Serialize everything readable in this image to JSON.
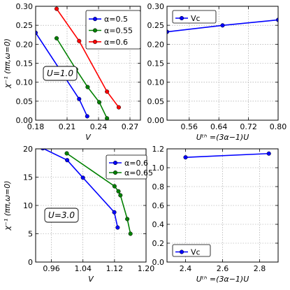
{
  "chart_data": [
    {
      "type": "line",
      "xlabel": "V",
      "ylabel": "χ⁻¹ (ππ,ω=0)",
      "xlim": [
        0.18,
        0.28
      ],
      "ylim": [
        0.0,
        0.3
      ],
      "xticks": [
        "0.18",
        "0.21",
        "0.24",
        "0.27"
      ],
      "yticks": [
        "0.00",
        "0.05",
        "0.10",
        "0.15",
        "0.20",
        "0.25",
        "0.30"
      ],
      "grid": true,
      "legend": "top-right",
      "annotation": "U=1.0",
      "series": [
        {
          "name": "α=0.5",
          "color": "#0000ff",
          "x": [
            0.18,
            0.2215,
            0.2292
          ],
          "y": [
            0.2303,
            0.0558,
            0.0103
          ]
        },
        {
          "name": "α=0.55",
          "color": "#008000",
          "x": [
            0.2,
            0.2185,
            0.2296,
            0.2407,
            0.2481
          ],
          "y": [
            0.2158,
            0.1339,
            0.0873,
            0.0473,
            0.0049
          ]
        },
        {
          "name": "α=0.6",
          "color": "#ff0000",
          "x": [
            0.2,
            0.2215,
            0.2481,
            0.2593
          ],
          "y": [
            0.2933,
            0.2085,
            0.0752,
            0.0339
          ]
        }
      ]
    },
    {
      "type": "line",
      "xlabel": "Uᵗʰ =(3α−1)U",
      "ylabel": "",
      "xlim": [
        0.5,
        0.8
      ],
      "ylim": [
        0.0,
        0.3
      ],
      "xticks": [
        "0.56",
        "0.64",
        "0.72",
        "0.80"
      ],
      "yticks": [
        "0.00",
        "0.05",
        "0.10",
        "0.15",
        "0.20",
        "0.25",
        "0.30"
      ],
      "grid": true,
      "legend": "top-left",
      "series": [
        {
          "name": "Vc",
          "color": "#0000ff",
          "x": [
            0.5,
            0.65,
            0.8
          ],
          "y": [
            0.2327,
            0.2497,
            0.2642
          ]
        }
      ]
    },
    {
      "type": "line",
      "xlabel": "V",
      "ylabel": "χ⁻¹ (ππ,ω=0)",
      "xlim": [
        0.92,
        1.2
      ],
      "ylim": [
        0,
        20
      ],
      "xticks": [
        "0.96",
        "1.04",
        "1.12",
        "1.20"
      ],
      "yticks": [
        "0",
        "5",
        "10",
        "15",
        "20"
      ],
      "grid": true,
      "legend": "top-right",
      "annotation": "U=3.0",
      "series": [
        {
          "name": "α=0.6",
          "color": "#0000ff",
          "x": [
            0.938,
            1.0,
            1.04,
            1.1195,
            1.128
          ],
          "y": [
            20.1,
            18.0,
            14.9,
            8.8,
            6.1
          ]
        },
        {
          "name": "α=0.65",
          "color": "#008000",
          "x": [
            0.999,
            1.12,
            1.13,
            1.135,
            1.1524,
            1.1605
          ],
          "y": [
            19.2,
            13.4,
            12.5,
            11.8,
            7.6,
            5.0
          ]
        }
      ]
    },
    {
      "type": "line",
      "xlabel": "Uᵗʰ =(3α−1)U",
      "ylabel": "",
      "xlim": [
        2.3,
        2.9
      ],
      "ylim": [
        0.0,
        1.2
      ],
      "xticks": [
        "2.4",
        "2.6",
        "2.8"
      ],
      "yticks": [
        "0.0",
        "0.2",
        "0.4",
        "0.6",
        "0.8",
        "1.0",
        "1.2"
      ],
      "grid": true,
      "legend": "bottom-left",
      "series": [
        {
          "name": "Vc",
          "color": "#0000ff",
          "x": [
            2.4,
            2.85
          ],
          "y": [
            1.11,
            1.15
          ]
        }
      ]
    }
  ]
}
